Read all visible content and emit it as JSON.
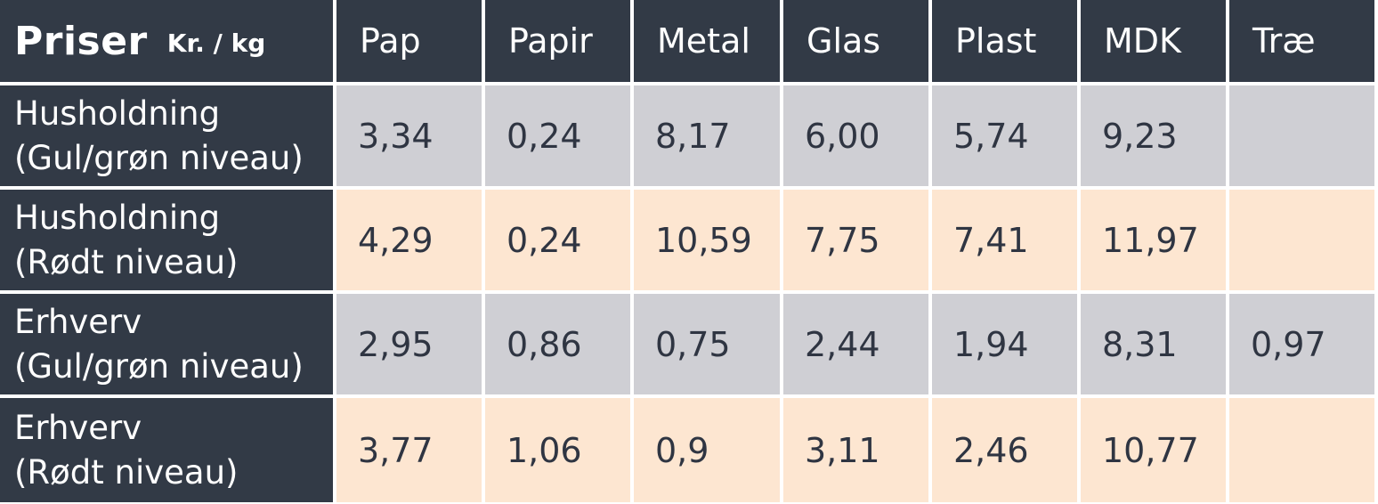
{
  "table": {
    "title": "Priser",
    "unit": "Kr. / kg",
    "columns": [
      "Pap",
      "Papir",
      "Metal",
      "Glas",
      "Plast",
      "MDK",
      "Træ"
    ],
    "rows": [
      {
        "label_line1": "Husholdning",
        "label_line2": "(Gul/grøn niveau)",
        "values": [
          "3,34",
          "0,24",
          "8,17",
          "6,00",
          "5,74",
          "9,23",
          ""
        ],
        "color": "#cfcfd4"
      },
      {
        "label_line1": "Husholdning",
        "label_line2": "(Rødt niveau)",
        "values": [
          "4,29",
          "0,24",
          "10,59",
          "7,75",
          "7,41",
          "11,97",
          ""
        ],
        "color": "#fde6d1"
      },
      {
        "label_line1": "Erhverv",
        "label_line2": "(Gul/grøn niveau)",
        "values": [
          "2,95",
          "0,86",
          "0,75",
          "2,44",
          "1,94",
          "8,31",
          "0,97"
        ],
        "color": "#cfcfd4"
      },
      {
        "label_line1": "Erhverv",
        "label_line2": "(Rødt niveau)",
        "values": [
          "3,77",
          "1,06",
          "0,9",
          "3,11",
          "2,46",
          "10,77",
          ""
        ],
        "color": "#fde6d1"
      }
    ]
  },
  "colors": {
    "header_bg": "#323a46",
    "header_text": "#ffffff",
    "body_text": "#2f3542"
  }
}
